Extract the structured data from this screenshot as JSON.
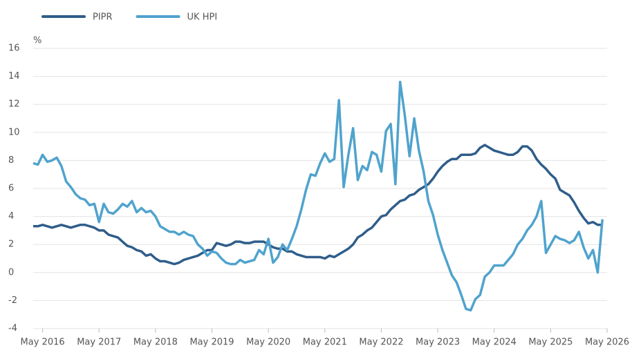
{
  "chart_data": {
    "type": "line",
    "y_label": "%",
    "x": [
      "2016-03",
      "2016-04",
      "2016-05",
      "2016-06",
      "2016-07",
      "2016-08",
      "2016-09",
      "2016-10",
      "2016-11",
      "2016-12",
      "2017-01",
      "2017-02",
      "2017-03",
      "2017-04",
      "2017-05",
      "2017-06",
      "2017-07",
      "2017-08",
      "2017-09",
      "2017-10",
      "2017-11",
      "2017-12",
      "2018-01",
      "2018-02",
      "2018-03",
      "2018-04",
      "2018-05",
      "2018-06",
      "2018-07",
      "2018-08",
      "2018-09",
      "2018-10",
      "2018-11",
      "2018-12",
      "2019-01",
      "2019-02",
      "2019-03",
      "2019-04",
      "2019-05",
      "2019-06",
      "2019-07",
      "2019-08",
      "2019-09",
      "2019-10",
      "2019-11",
      "2019-12",
      "2020-01",
      "2020-02",
      "2020-03",
      "2020-04",
      "2020-05",
      "2020-06",
      "2020-07",
      "2020-08",
      "2020-09",
      "2020-10",
      "2020-11",
      "2020-12",
      "2021-01",
      "2021-02",
      "2021-03",
      "2021-04",
      "2021-05",
      "2021-06",
      "2021-07",
      "2021-08",
      "2021-09",
      "2021-10",
      "2021-11",
      "2021-12",
      "2022-01",
      "2022-02",
      "2022-03",
      "2022-04",
      "2022-05",
      "2022-06",
      "2022-07",
      "2022-08",
      "2022-09",
      "2022-10",
      "2022-11",
      "2022-12",
      "2023-01",
      "2023-02",
      "2023-03",
      "2023-04",
      "2023-05",
      "2023-06",
      "2023-07",
      "2023-08",
      "2023-09",
      "2023-10",
      "2023-11",
      "2023-12",
      "2024-01",
      "2024-02",
      "2024-03",
      "2024-04",
      "2024-05",
      "2024-06",
      "2024-07",
      "2024-08",
      "2024-09",
      "2024-10",
      "2024-11",
      "2024-12",
      "2025-01",
      "2025-02",
      "2025-03",
      "2025-04",
      "2025-05",
      "2025-06",
      "2025-07",
      "2025-08",
      "2025-09",
      "2025-10",
      "2025-11",
      "2025-12",
      "2026-01",
      "2026-02",
      "2026-03",
      "2026-04"
    ],
    "series": [
      {
        "name": "PIPR",
        "color": "#2f5d8a",
        "values": [
          3.3,
          3.3,
          3.4,
          3.3,
          3.2,
          3.3,
          3.4,
          3.3,
          3.2,
          3.3,
          3.4,
          3.4,
          3.3,
          3.2,
          3.0,
          3.0,
          2.7,
          2.6,
          2.5,
          2.2,
          1.9,
          1.8,
          1.6,
          1.5,
          1.2,
          1.3,
          1.0,
          0.8,
          0.8,
          0.7,
          0.6,
          0.7,
          0.9,
          1.0,
          1.1,
          1.2,
          1.4,
          1.6,
          1.6,
          2.1,
          2.0,
          1.9,
          2.0,
          2.2,
          2.2,
          2.1,
          2.1,
          2.2,
          2.2,
          2.2,
          2.0,
          1.8,
          1.7,
          1.7,
          1.5,
          1.5,
          1.3,
          1.2,
          1.1,
          1.1,
          1.1,
          1.1,
          1.0,
          1.2,
          1.1,
          1.3,
          1.5,
          1.7,
          2.0,
          2.5,
          2.7,
          3.0,
          3.2,
          3.6,
          4.0,
          4.1,
          4.5,
          4.8,
          5.1,
          5.2,
          5.5,
          5.6,
          5.9,
          6.1,
          6.3,
          6.7,
          7.2,
          7.6,
          7.9,
          8.1,
          8.1,
          8.4,
          8.4,
          8.4,
          8.5,
          8.9,
          9.1,
          8.9,
          8.7,
          8.6,
          8.5,
          8.4,
          8.4,
          8.6,
          9.0,
          9.0,
          8.7,
          8.1,
          7.7,
          7.4,
          7.0,
          6.7,
          5.9,
          5.7,
          5.5,
          5.0,
          4.4,
          3.9,
          3.5,
          3.6,
          3.4,
          3.4
        ]
      },
      {
        "name": "UK HPI",
        "color": "#4fa3cd",
        "values": [
          7.8,
          7.7,
          8.4,
          7.9,
          8.0,
          8.2,
          7.6,
          6.5,
          6.1,
          5.6,
          5.3,
          5.2,
          4.8,
          4.9,
          3.6,
          4.9,
          4.3,
          4.2,
          4.5,
          4.9,
          4.7,
          5.1,
          4.3,
          4.6,
          4.3,
          4.4,
          4.0,
          3.3,
          3.1,
          2.9,
          2.9,
          2.7,
          2.9,
          2.7,
          2.6,
          2.0,
          1.7,
          1.2,
          1.5,
          1.4,
          1.0,
          0.7,
          0.6,
          0.6,
          0.9,
          0.7,
          0.8,
          0.9,
          1.6,
          1.3,
          2.4,
          0.7,
          1.1,
          2.0,
          1.6,
          2.4,
          3.3,
          4.5,
          5.9,
          7.0,
          6.9,
          7.8,
          8.5,
          7.9,
          8.1,
          12.3,
          6.1,
          8.4,
          10.3,
          6.6,
          7.6,
          7.3,
          8.6,
          8.4,
          7.2,
          10.1,
          10.6,
          6.3,
          13.6,
          11.2,
          8.3,
          11.0,
          8.7,
          7.2,
          5.1,
          4.1,
          2.7,
          1.6,
          0.7,
          -0.2,
          -0.7,
          -1.6,
          -2.6,
          -2.7,
          -1.9,
          -1.6,
          -0.3,
          0.0,
          0.5,
          0.5,
          0.5,
          0.9,
          1.3,
          2.0,
          2.4,
          3.0,
          3.4,
          4.0,
          5.1,
          1.4,
          2.0,
          2.6,
          2.4,
          2.3,
          2.1,
          2.3,
          2.9,
          1.8,
          1.0,
          1.6,
          0.0,
          3.8
        ]
      }
    ],
    "xlim": [
      "2016-03",
      "2026-05"
    ],
    "xticks": [
      {
        "value": "2016-05",
        "label": "May 2016"
      },
      {
        "value": "2017-05",
        "label": "May 2017"
      },
      {
        "value": "2018-05",
        "label": "May 2018"
      },
      {
        "value": "2019-05",
        "label": "May 2019"
      },
      {
        "value": "2020-05",
        "label": "May 2020"
      },
      {
        "value": "2021-05",
        "label": "May 2021"
      },
      {
        "value": "2022-05",
        "label": "May 2022"
      },
      {
        "value": "2023-05",
        "label": "May 2023"
      },
      {
        "value": "2024-05",
        "label": "May 2024"
      },
      {
        "value": "2025-05",
        "label": "May 2025"
      },
      {
        "value": "2026-05",
        "label": "May 2026"
      }
    ],
    "ylim": [
      -4,
      16
    ],
    "yticks": [
      -4,
      -2,
      0,
      2,
      4,
      6,
      8,
      10,
      12,
      14,
      16
    ],
    "grid": true,
    "legend": "top-left"
  }
}
